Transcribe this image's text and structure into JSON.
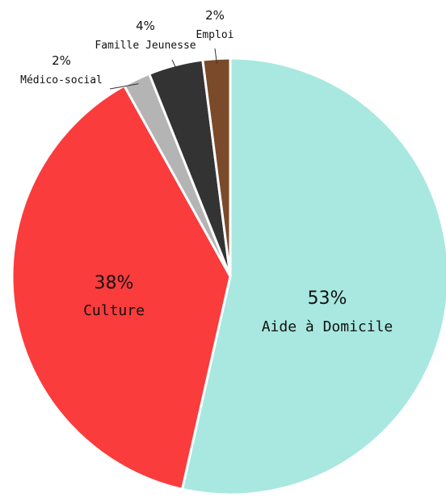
{
  "chart_data": {
    "type": "pie",
    "title": "",
    "start_angle_deg": 0,
    "direction": "clockwise",
    "slices": [
      {
        "label": "Aide à Domicile",
        "value": 53,
        "display": "53%",
        "color": "#a8e8e0"
      },
      {
        "label": "Culture",
        "value": 38,
        "display": "38%",
        "color": "#fa3c3c"
      },
      {
        "label": "Médico-social",
        "value": 2,
        "display": "2%",
        "color": "#b4b4b4"
      },
      {
        "label": "Famille Jeunesse",
        "value": 4,
        "display": "4%",
        "color": "#333333"
      },
      {
        "label": "Emploi",
        "value": 2,
        "display": "2%",
        "color": "#7a4a2a"
      }
    ]
  }
}
